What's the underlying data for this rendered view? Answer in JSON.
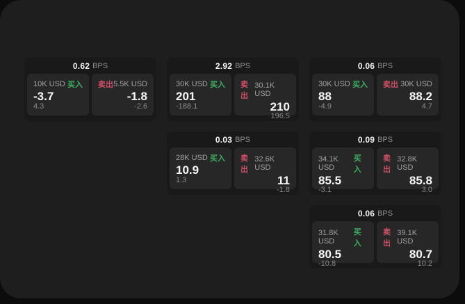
{
  "labels": {
    "bps_unit": "BPS",
    "buy": "买入",
    "sell": "卖出"
  },
  "colors": {
    "buy": "#3faf63",
    "sell": "#cf5066",
    "panel": "#1e1e1e",
    "card": "#191919",
    "cell": "#272727"
  },
  "cards": [
    {
      "bps": "0.62",
      "buy": {
        "amount": "10K USD",
        "price": "-3.7",
        "delta": "4.3"
      },
      "sell": {
        "amount": "5.5K USD",
        "price": "-1.8",
        "delta": "-2.6"
      }
    },
    {
      "bps": "2.92",
      "buy": {
        "amount": "30K USD",
        "price": "201",
        "delta": "-188.1"
      },
      "sell": {
        "amount": "30.1K USD",
        "price": "210",
        "delta": "196.5"
      }
    },
    {
      "bps": "0.06",
      "buy": {
        "amount": "30K USD",
        "price": "88",
        "delta": "-4.9"
      },
      "sell": {
        "amount": "30K USD",
        "price": "88.2",
        "delta": "4.7"
      }
    },
    {
      "bps": "0.03",
      "buy": {
        "amount": "28K USD",
        "price": "10.9",
        "delta": "1.3"
      },
      "sell": {
        "amount": "32.6K USD",
        "price": "11",
        "delta": "-1.8"
      }
    },
    {
      "bps": "0.09",
      "buy": {
        "amount": "34.1K USD",
        "price": "85.5",
        "delta": "-3.1"
      },
      "sell": {
        "amount": "32.8K USD",
        "price": "85.8",
        "delta": "3.0"
      }
    },
    {
      "bps": "0.06",
      "buy": {
        "amount": "31.8K USD",
        "price": "80.5",
        "delta": "-10.8"
      },
      "sell": {
        "amount": "39.1K USD",
        "price": "80.7",
        "delta": "10.2"
      }
    }
  ]
}
